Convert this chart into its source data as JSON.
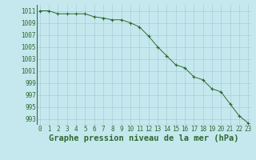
{
  "x": [
    0,
    1,
    2,
    3,
    4,
    5,
    6,
    7,
    8,
    9,
    10,
    11,
    12,
    13,
    14,
    15,
    16,
    17,
    18,
    19,
    20,
    21,
    22,
    23
  ],
  "y": [
    1011,
    1011,
    1010.5,
    1010.5,
    1010.5,
    1010.5,
    1010.0,
    1009.8,
    1009.5,
    1009.5,
    1009.0,
    1008.3,
    1006.8,
    1005.0,
    1003.5,
    1002.0,
    1001.5,
    1000.0,
    999.5,
    998.0,
    997.5,
    995.5,
    993.5,
    992.3
  ],
  "line_color": "#2d6a2d",
  "marker": "+",
  "bg_color": "#c5e8ef",
  "grid_color": "#a8cdd5",
  "text_color": "#2d6a2d",
  "xlabel": "Graphe pression niveau de la mer (hPa)",
  "ylim": [
    992,
    1012
  ],
  "xlim": [
    -0.3,
    23.3
  ],
  "yticks": [
    993,
    995,
    997,
    999,
    1001,
    1003,
    1005,
    1007,
    1009,
    1011
  ],
  "xticks": [
    0,
    1,
    2,
    3,
    4,
    5,
    6,
    7,
    8,
    9,
    10,
    11,
    12,
    13,
    14,
    15,
    16,
    17,
    18,
    19,
    20,
    21,
    22,
    23
  ],
  "tick_fontsize": 5.5,
  "xlabel_fontsize": 7.5
}
